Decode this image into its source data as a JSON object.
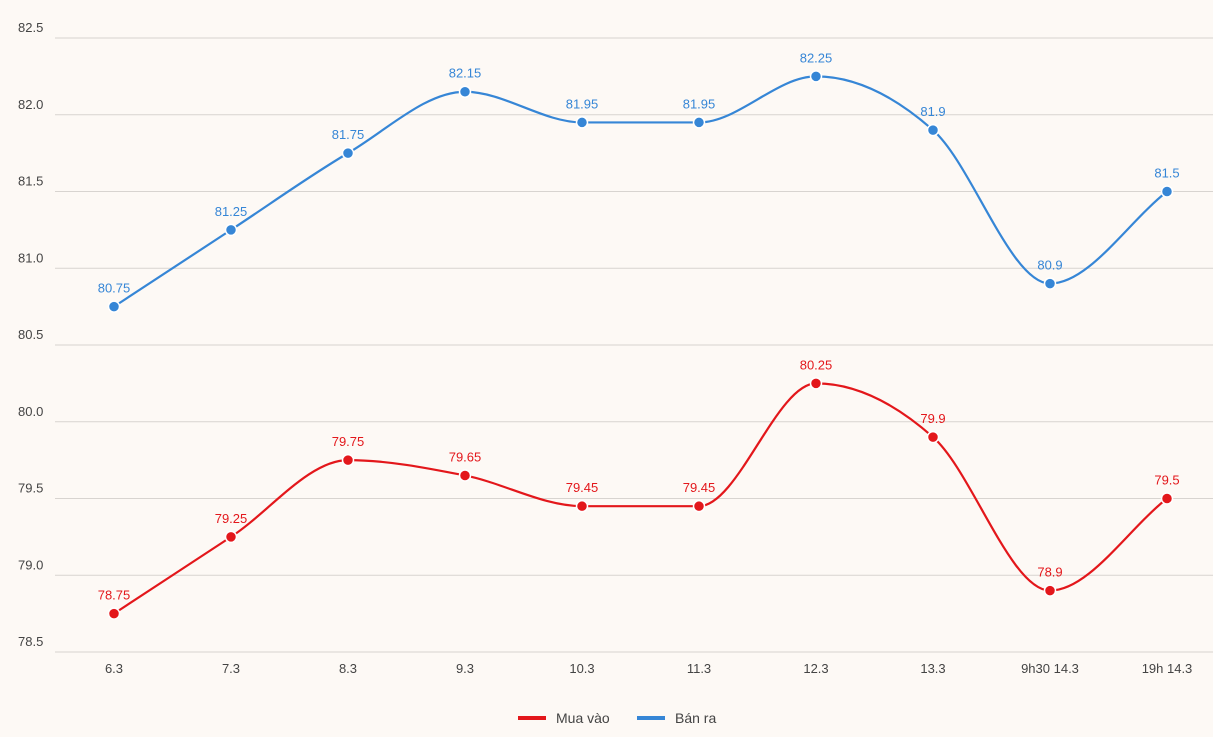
{
  "chart_data": {
    "type": "line",
    "title": "",
    "xlabel": "",
    "ylabel": "",
    "categories": [
      "6.3",
      "7.3",
      "8.3",
      "9.3",
      "10.3",
      "11.3",
      "12.3",
      "13.3",
      "9h30 14.3",
      "19h 14.3"
    ],
    "ylim": [
      78.5,
      82.5
    ],
    "yticks": [
      "78.5",
      "79.0",
      "79.5",
      "80.0",
      "80.5",
      "81.0",
      "81.5",
      "82.0",
      "82.5"
    ],
    "grid": true,
    "legend_position": "bottom-center",
    "series": [
      {
        "name": "Mua vào",
        "color": "#e3171b",
        "values": [
          78.75,
          79.25,
          79.75,
          79.65,
          79.45,
          79.45,
          80.25,
          79.9,
          78.9,
          79.5
        ],
        "labels": [
          "78.75",
          "79.25",
          "79.75",
          "79.65",
          "79.45",
          "79.45",
          "80.25",
          "79.9",
          "78.9",
          "79.5"
        ]
      },
      {
        "name": "Bán ra",
        "color": "#3686d6",
        "values": [
          80.75,
          81.25,
          81.75,
          82.15,
          81.95,
          81.95,
          82.25,
          81.9,
          80.9,
          81.5
        ],
        "labels": [
          "80.75",
          "81.25",
          "81.75",
          "82.15",
          "81.95",
          "81.95",
          "82.25",
          "81.9",
          "80.9",
          "81.5"
        ]
      }
    ]
  }
}
